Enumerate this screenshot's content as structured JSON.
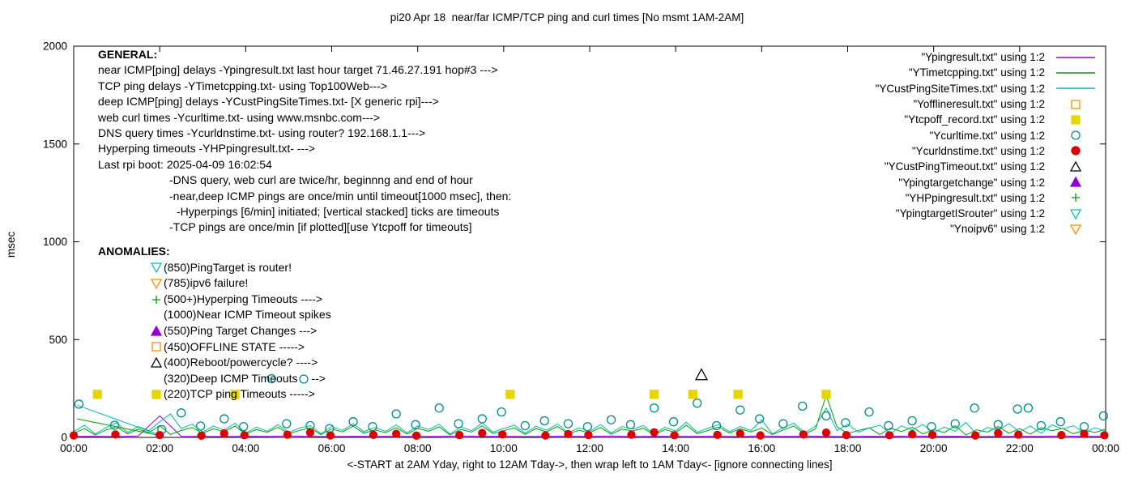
{
  "title": "pi20 Apr 18  near/far ICMP/TCP ping and curl times [No msmt 1AM-2AM]",
  "axes": {
    "ylabel": "msec",
    "xlabel": "<-START at 2AM Yday, right to 12AM Tday->, then wrap left to 1AM Tday<- [ignore connecting lines]",
    "yticks": [
      0,
      500,
      1000,
      1500,
      2000
    ],
    "xticks": [
      "00:00",
      "02:00",
      "04:00",
      "06:00",
      "08:00",
      "10:00",
      "12:00",
      "14:00",
      "16:00",
      "18:00",
      "20:00",
      "22:00",
      "00:00"
    ],
    "ymax": 2000,
    "hours": 24
  },
  "general": {
    "header": "GENERAL:",
    "lines": [
      "near ICMP[ping] delays -Ypingresult.txt last hour target 71.46.27.191 hop#3 --->",
      "TCP ping delays -YTimetcpping.txt- using Top100Web--->",
      "deep ICMP[ping] delays -YCustPingSiteTimes.txt- [X generic rpi]--->",
      "web curl times -Ycurltime.txt- using www.msnbc.com--->",
      "DNS query times -Ycurldnstime.txt- using router? 192.168.1.1--->",
      "Hyperping timeouts -YHPpingresult.txt- --->",
      "Last rpi boot: 2025-04-09 16:02:54"
    ],
    "notes": [
      {
        "text": "-DNS query, web curl are twice/hr, beginnng and end of hour",
        "indent": 88
      },
      {
        "text": "-near,deep ICMP pings are once/min until timeout[1000 msec], then:",
        "indent": 88
      },
      {
        "text": "-Hyperpings [6/min] initiated; [vertical stacked] ticks are timeouts",
        "indent": 97
      },
      {
        "text": "-TCP pings are once/min [if plotted][use Ytcpoff for timeouts]",
        "indent": 88
      }
    ]
  },
  "anomalies": {
    "header": "ANOMALIES:",
    "items": [
      {
        "icon": "triangle-down",
        "color": "#00c0c0",
        "filled": false,
        "text": "(850)PingTarget is router!"
      },
      {
        "icon": "triangle-down",
        "color": "#ff8c00",
        "filled": false,
        "text": "(785)ipv6 failure!"
      },
      {
        "icon": "plus",
        "color": "#00a000",
        "filled": false,
        "text": "(500+)Hyperping Timeouts ---->"
      },
      {
        "icon": "",
        "color": "",
        "filled": false,
        "text": "(1000)Near ICMP Timeout spikes"
      },
      {
        "icon": "triangle-up",
        "color": "#9400d3",
        "filled": true,
        "text": "(550)Ping Target Changes --->"
      },
      {
        "icon": "square",
        "color": "#ff8c00",
        "filled": false,
        "text": "(450)OFFLINE STATE ----->"
      },
      {
        "icon": "triangle-up",
        "color": "#000000",
        "filled": false,
        "text": "(400)Reboot/powercycle? ---->"
      },
      {
        "icon": "",
        "color": "",
        "filled": false,
        "text": "(320)Deep ICMP Timeouts ",
        "icon2": "circle",
        "color2": "#008b8b",
        "text2": "-->"
      },
      {
        "icon": "square",
        "color": "#e6d500",
        "filled": true,
        "text": "(220)TCP ping Timeouts ----->"
      }
    ]
  },
  "legend": [
    {
      "label": "\"Ypingresult.txt\" using 1:2",
      "sample": "line",
      "color": "#9400d3"
    },
    {
      "label": "\"YTimetcpping.txt\" using 1:2",
      "sample": "line",
      "color": "#00a000"
    },
    {
      "label": "\"YCustPingSiteTimes.txt\" using 1:2",
      "sample": "line",
      "color": "#00b8b8"
    },
    {
      "label": "\"Yofflineresult.txt\" using 1:2",
      "sample": "marker",
      "marker": "square",
      "filled": false,
      "color": "#ff8c00"
    },
    {
      "label": "\"Ytcpoff_record.txt\" using 1:2",
      "sample": "marker",
      "marker": "square",
      "filled": true,
      "color": "#e6d500"
    },
    {
      "label": "\"Ycurltime.txt\" using 1:2",
      "sample": "marker",
      "marker": "circle",
      "filled": false,
      "color": "#008b8b"
    },
    {
      "label": "\"Ycurldnstime.txt\" using 1:2",
      "sample": "marker",
      "marker": "circle",
      "filled": true,
      "color": "#dd0000"
    },
    {
      "label": "\"YCustPingTimeout.txt\" using 1:2",
      "sample": "marker",
      "marker": "triangle-up",
      "filled": false,
      "color": "#000000"
    },
    {
      "label": "\"Ypingtargetchange\" using 1:2",
      "sample": "marker",
      "marker": "triangle-up",
      "filled": true,
      "color": "#9400d3"
    },
    {
      "label": "\"YHPpingresult.txt\" using 1:2",
      "sample": "marker",
      "marker": "plus",
      "filled": false,
      "color": "#00a000"
    },
    {
      "label": "\"YpingtargetISrouter\" using 1:2",
      "sample": "marker",
      "marker": "triangle-down",
      "filled": false,
      "color": "#00c0c0"
    },
    {
      "label": "\"Ynoipv6\" using 1:2",
      "sample": "marker",
      "marker": "triangle-down",
      "filled": false,
      "color": "#ff8c00"
    }
  ],
  "chart_data": {
    "type": "line",
    "title": "pi20 Apr 18  near/far ICMP/TCP ping and curl times [No msmt 1AM-2AM]",
    "xlabel": "<-START at 2AM Yday, right to 12AM Tday->, then wrap left to 1AM Tday<- [ignore connecting lines]",
    "ylabel": "msec",
    "ylim": [
      0,
      2000
    ],
    "xlim_hours": [
      0,
      24
    ],
    "grid": false,
    "legend_position": "top-right",
    "series": [
      {
        "name": "Ypingresult.txt",
        "style": "line",
        "color": "#9400d3",
        "x0": 0,
        "dx": 0.5,
        "values": [
          5,
          6,
          4,
          7,
          110,
          6,
          5,
          4,
          6,
          5,
          7,
          5,
          4,
          6,
          5,
          6,
          4,
          5,
          7,
          5,
          6,
          4,
          5,
          6,
          5,
          7,
          4,
          6,
          5,
          5,
          6,
          4,
          7,
          5,
          6,
          5,
          4,
          6,
          5,
          7,
          5,
          6,
          4,
          5,
          6,
          5,
          7,
          5,
          6
        ]
      },
      {
        "name": "YTimetcpping.txt",
        "style": "line",
        "color": "#00a000",
        "x0": 0,
        "dx": 0.25,
        "values": [
          20,
          45,
          12,
          38,
          55,
          18,
          42,
          25,
          60,
          15,
          35,
          50,
          22,
          44,
          30,
          58,
          16,
          40,
          26,
          52,
          19,
          36,
          48,
          14,
          43,
          28,
          57,
          21,
          39,
          24,
          50,
          17,
          46,
          31,
          54,
          13,
          41,
          27,
          59,
          20,
          34,
          49,
          15,
          45,
          29,
          56,
          18,
          37,
          23,
          51,
          16,
          42,
          33,
          47,
          12,
          40,
          25,
          62,
          19,
          35,
          53,
          22,
          44,
          28,
          48,
          14,
          38,
          58,
          17,
          43,
          215,
          55,
          20,
          36,
          49,
          15,
          47,
          30,
          52,
          18,
          41,
          24,
          60,
          13,
          39,
          27,
          56,
          21,
          45,
          16,
          50,
          34,
          46,
          19,
          37,
          25,
          42
        ]
      },
      {
        "name": "YCustPingSiteTimes.txt",
        "style": "line",
        "color": "#00b8b8",
        "x0": 0,
        "dx": 0.25,
        "values": [
          30,
          62,
          18,
          50,
          75,
          25,
          55,
          35,
          80,
          120,
          45,
          68,
          28,
          58,
          38,
          72,
          22,
          52,
          32,
          65,
          26,
          48,
          60,
          19,
          56,
          36,
          70,
          29,
          51,
          31,
          64,
          23,
          59,
          40,
          67,
          17,
          54,
          34,
          74,
          27,
          46,
          63,
          21,
          57,
          37,
          69,
          24,
          49,
          30,
          66,
          22,
          55,
          42,
          61,
          16,
          52,
          33,
          78,
          26,
          47,
          65,
          29,
          56,
          35,
          90,
          18,
          50,
          72,
          23,
          57,
          150,
          34,
          68,
          27,
          48,
          62,
          20,
          59,
          38,
          66,
          24,
          53,
          31,
          76,
          17,
          51,
          36,
          70,
          28,
          58,
          21,
          64,
          43,
          60,
          25,
          49,
          33
        ]
      },
      {
        "name": "connecting-line-deep",
        "style": "line",
        "color": "#00b8b8",
        "points": [
          [
            0.08,
            165
          ],
          [
            2.0,
            12
          ]
        ]
      },
      {
        "name": "connecting-line-tcp",
        "style": "line",
        "color": "#00a000",
        "points": [
          [
            0.08,
            95
          ],
          [
            2.05,
            8
          ]
        ]
      },
      {
        "name": "Ycurltime.txt",
        "style": "points",
        "marker": "circle",
        "filled": false,
        "color": "#008b8b",
        "size": 5,
        "points": [
          [
            0.12,
            170
          ],
          [
            0.95,
            62
          ],
          [
            2.05,
            40
          ],
          [
            2.5,
            125
          ],
          [
            2.95,
            58
          ],
          [
            3.5,
            95
          ],
          [
            3.95,
            55
          ],
          [
            4.6,
            300
          ],
          [
            4.95,
            70
          ],
          [
            5.5,
            60
          ],
          [
            5.95,
            45
          ],
          [
            6.5,
            80
          ],
          [
            6.95,
            55
          ],
          [
            7.5,
            120
          ],
          [
            7.95,
            65
          ],
          [
            8.5,
            150
          ],
          [
            8.95,
            70
          ],
          [
            9.5,
            95
          ],
          [
            9.95,
            130
          ],
          [
            10.5,
            60
          ],
          [
            10.95,
            85
          ],
          [
            11.5,
            70
          ],
          [
            11.95,
            55
          ],
          [
            12.5,
            90
          ],
          [
            12.95,
            65
          ],
          [
            13.5,
            150
          ],
          [
            13.95,
            80
          ],
          [
            14.5,
            175
          ],
          [
            14.95,
            60
          ],
          [
            15.5,
            140
          ],
          [
            15.95,
            95
          ],
          [
            16.5,
            70
          ],
          [
            16.95,
            160
          ],
          [
            17.5,
            110
          ],
          [
            17.95,
            75
          ],
          [
            18.5,
            130
          ],
          [
            18.95,
            60
          ],
          [
            19.5,
            85
          ],
          [
            19.95,
            55
          ],
          [
            20.5,
            70
          ],
          [
            20.95,
            150
          ],
          [
            21.5,
            65
          ],
          [
            21.95,
            145
          ],
          [
            22.2,
            150
          ],
          [
            22.5,
            60
          ],
          [
            22.95,
            80
          ],
          [
            23.5,
            55
          ],
          [
            23.95,
            110
          ]
        ]
      },
      {
        "name": "Ycurldnstime.txt",
        "style": "points",
        "marker": "circle",
        "filled": true,
        "color": "#dd0000",
        "size": 4.5,
        "points": [
          [
            0.0,
            10
          ],
          [
            0.97,
            15
          ],
          [
            2.0,
            12
          ],
          [
            2.97,
            9
          ],
          [
            3.5,
            20
          ],
          [
            3.97,
            11
          ],
          [
            4.97,
            14
          ],
          [
            5.5,
            25
          ],
          [
            5.97,
            10
          ],
          [
            6.97,
            13
          ],
          [
            7.5,
            18
          ],
          [
            7.97,
            9
          ],
          [
            8.97,
            12
          ],
          [
            9.5,
            22
          ],
          [
            9.97,
            15
          ],
          [
            10.97,
            10
          ],
          [
            11.5,
            17
          ],
          [
            11.97,
            12
          ],
          [
            12.97,
            14
          ],
          [
            13.5,
            26
          ],
          [
            13.97,
            11
          ],
          [
            14.97,
            13
          ],
          [
            15.5,
            19
          ],
          [
            15.97,
            10
          ],
          [
            16.97,
            15
          ],
          [
            17.5,
            24
          ],
          [
            17.97,
            12
          ],
          [
            18.97,
            11
          ],
          [
            19.5,
            16
          ],
          [
            19.97,
            13
          ],
          [
            20.97,
            10
          ],
          [
            21.5,
            21
          ],
          [
            21.97,
            14
          ],
          [
            22.97,
            12
          ],
          [
            23.5,
            18
          ],
          [
            23.97,
            11
          ]
        ]
      },
      {
        "name": "Ytcpoff_record.txt",
        "style": "points",
        "marker": "square",
        "filled": true,
        "color": "#e6d500",
        "size": 5,
        "points": [
          [
            0.55,
            220
          ],
          [
            3.75,
            220
          ],
          [
            10.15,
            220
          ],
          [
            13.5,
            220
          ],
          [
            14.4,
            220
          ],
          [
            15.45,
            220
          ],
          [
            17.5,
            220
          ]
        ]
      },
      {
        "name": "Yofflineresult.txt",
        "style": "points",
        "marker": "square",
        "filled": false,
        "color": "#ff8c00",
        "size": 5,
        "points": []
      },
      {
        "name": "YCustPingTimeout.txt",
        "style": "points",
        "marker": "triangle-up",
        "filled": false,
        "color": "#000000",
        "size": 6,
        "points": [
          [
            14.6,
            320
          ]
        ]
      },
      {
        "name": "Ypingtargetchange",
        "style": "points",
        "marker": "triangle-up",
        "filled": true,
        "color": "#9400d3",
        "size": 6,
        "points": []
      },
      {
        "name": "YHPpingresult.txt",
        "style": "points",
        "marker": "plus",
        "filled": false,
        "color": "#00a000",
        "size": 5,
        "points": []
      },
      {
        "name": "YpingtargetISrouter",
        "style": "points",
        "marker": "triangle-down",
        "filled": false,
        "color": "#00c0c0",
        "size": 6,
        "points": []
      },
      {
        "name": "Ynoipv6",
        "style": "points",
        "marker": "triangle-down",
        "filled": false,
        "color": "#ff8c00",
        "size": 6,
        "points": []
      }
    ]
  }
}
